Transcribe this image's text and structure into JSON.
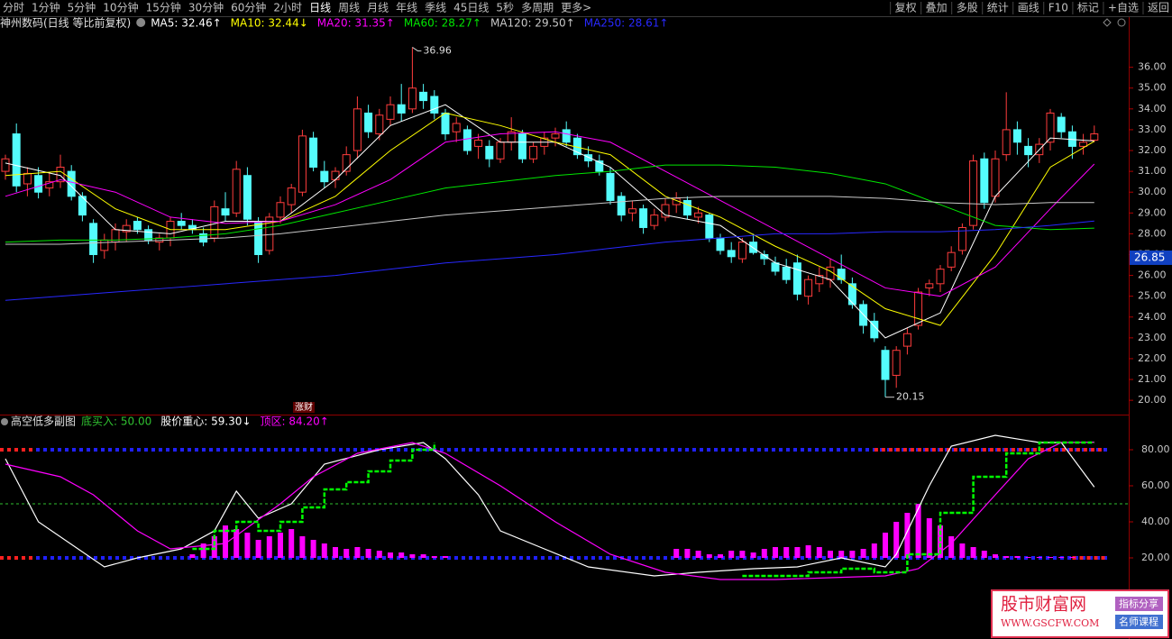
{
  "toolbar": {
    "left": [
      "分时",
      "1分钟",
      "5分钟",
      "10分钟",
      "15分钟",
      "30分钟",
      "60分钟",
      "2小时",
      "日线",
      "周线",
      "月线",
      "年线",
      "季线",
      "45日线",
      "5秒",
      "多周期",
      "更多>"
    ],
    "active_index": 8,
    "right": [
      "复权",
      "叠加",
      "多股",
      "统计",
      "画线",
      "F10",
      "标记",
      "+自选",
      "返回"
    ]
  },
  "chart_data": [
    {
      "type": "candlestick",
      "title": "神州数码(日线 等比前复权)",
      "up_color": "#ff3c3c",
      "down_color": "#54fcfc",
      "open": [
        31.0,
        32.8,
        30.4,
        30.8,
        30.2,
        30.5,
        31.0,
        29.8,
        28.5,
        27.2,
        27.6,
        28.1,
        28.6,
        28.2,
        27.6,
        27.8,
        28.6,
        28.4,
        28.0,
        27.8,
        29.2,
        29.0,
        30.8,
        28.6,
        27.2,
        28.8,
        29.4,
        30.0,
        32.6,
        31.0,
        30.6,
        31.0,
        32.0,
        33.8,
        32.8,
        33.5,
        34.2,
        34.0,
        34.8,
        34.6,
        33.8,
        32.9,
        33.0,
        32.2,
        32.2,
        31.6,
        32.4,
        32.8,
        31.6,
        32.2,
        32.6,
        33.0,
        32.6,
        31.8,
        31.5,
        30.9,
        29.8,
        29.0,
        29.2,
        28.4,
        28.8,
        29.4,
        29.6,
        28.8,
        28.9,
        27.8,
        27.2,
        26.8,
        27.6,
        27.0,
        26.6,
        26.4,
        26.6,
        25.0,
        25.6,
        25.8,
        26.3,
        25.6,
        24.6,
        23.8,
        22.4,
        21.2,
        22.6,
        23.6,
        25.4,
        25.6,
        26.4,
        27.2,
        28.4,
        31.6,
        29.8,
        31.8,
        33.0,
        32.2,
        31.8,
        32.4,
        33.6,
        32.9,
        32.2,
        32.5
      ],
      "high": [
        31.8,
        33.3,
        31.2,
        31.2,
        30.9,
        31.8,
        31.3,
        30.0,
        28.7,
        28.0,
        28.5,
        28.7,
        28.8,
        28.4,
        28.0,
        28.8,
        29.0,
        28.7,
        28.3,
        29.6,
        30.0,
        31.5,
        31.2,
        28.8,
        29.0,
        29.8,
        30.4,
        33.0,
        32.9,
        31.5,
        31.2,
        32.2,
        34.6,
        34.2,
        34.0,
        34.6,
        35.2,
        36.96,
        35.2,
        34.9,
        34.0,
        33.6,
        33.2,
        32.8,
        32.5,
        32.6,
        33.6,
        33.0,
        32.4,
        32.9,
        33.1,
        33.4,
        32.8,
        32.2,
        31.8,
        31.2,
        30.0,
        29.6,
        29.4,
        29.2,
        29.7,
        30.0,
        29.8,
        29.3,
        29.0,
        28.0,
        27.6,
        27.8,
        28.0,
        27.2,
        26.9,
        26.8,
        27.0,
        26.0,
        26.4,
        26.8,
        27.0,
        25.9,
        24.8,
        24.2,
        22.6,
        22.6,
        23.5,
        25.4,
        25.8,
        26.5,
        27.4,
        28.5,
        31.8,
        31.9,
        32.0,
        34.8,
        33.4,
        32.6,
        32.6,
        34.0,
        33.8,
        33.2,
        32.8,
        33.2
      ],
      "low": [
        30.6,
        30.0,
        29.8,
        29.7,
        29.8,
        30.2,
        29.6,
        28.6,
        26.6,
        26.8,
        27.2,
        27.6,
        28.0,
        27.5,
        27.2,
        27.4,
        28.2,
        28.0,
        27.4,
        27.6,
        28.6,
        28.8,
        28.4,
        26.6,
        27.0,
        28.5,
        29.0,
        29.8,
        31.0,
        30.2,
        30.2,
        30.8,
        31.6,
        32.6,
        32.5,
        33.2,
        33.4,
        33.8,
        34.0,
        33.5,
        32.5,
        32.4,
        31.8,
        31.6,
        31.2,
        31.4,
        32.0,
        31.4,
        31.4,
        31.8,
        32.2,
        32.2,
        31.6,
        31.2,
        30.8,
        29.4,
        28.6,
        28.6,
        28.0,
        28.2,
        28.6,
        29.0,
        28.7,
        28.5,
        27.6,
        27.0,
        26.6,
        26.6,
        27.0,
        26.5,
        26.0,
        25.6,
        24.8,
        24.6,
        25.2,
        25.4,
        25.6,
        24.4,
        23.2,
        22.8,
        20.15,
        20.6,
        22.2,
        23.4,
        25.0,
        25.2,
        26.2,
        27.0,
        28.2,
        29.2,
        29.5,
        31.5,
        31.8,
        31.2,
        31.4,
        32.0,
        32.6,
        31.6,
        31.8,
        32.4
      ],
      "close": [
        31.6,
        30.3,
        30.9,
        30.0,
        30.5,
        31.2,
        29.8,
        28.9,
        27.0,
        27.7,
        28.2,
        28.4,
        28.2,
        27.7,
        27.8,
        28.6,
        28.4,
        28.2,
        27.6,
        29.3,
        28.9,
        31.1,
        28.7,
        27.0,
        28.8,
        29.5,
        30.2,
        32.7,
        31.2,
        30.5,
        31.0,
        31.8,
        34.0,
        32.9,
        33.7,
        34.2,
        33.8,
        35.0,
        34.4,
        33.8,
        32.8,
        33.3,
        32.0,
        32.5,
        31.6,
        32.4,
        32.9,
        31.6,
        32.2,
        32.6,
        32.8,
        32.4,
        31.8,
        31.5,
        31.0,
        29.6,
        28.9,
        29.2,
        28.3,
        28.9,
        29.4,
        29.7,
        28.9,
        29.0,
        27.8,
        27.2,
        26.9,
        27.6,
        27.1,
        26.8,
        26.2,
        25.8,
        25.1,
        25.8,
        26.0,
        26.4,
        25.8,
        24.6,
        23.6,
        23.0,
        21.0,
        22.4,
        23.2,
        25.2,
        25.6,
        26.3,
        27.1,
        28.3,
        31.5,
        29.5,
        31.6,
        33.0,
        32.4,
        31.8,
        32.3,
        33.8,
        32.9,
        32.2,
        32.4,
        32.8
      ],
      "ma_x": [
        0,
        5,
        10,
        15,
        20,
        25,
        30,
        35,
        40,
        45,
        50,
        55,
        60,
        65,
        70,
        75,
        80,
        85,
        90,
        95,
        99
      ],
      "ma": [
        {
          "legend": "MA5: 32.46↑",
          "color": "#ffffff",
          "values": [
            31.4,
            30.8,
            28.2,
            28.0,
            28.6,
            28.6,
            30.6,
            33.2,
            34.2,
            32.4,
            32.4,
            31.2,
            28.9,
            28.4,
            26.6,
            25.8,
            23.0,
            24.2,
            29.8,
            32.6,
            32.46
          ]
        },
        {
          "legend": "MA10: 32.44↓",
          "color": "#ffff00",
          "values": [
            30.8,
            31.0,
            29.2,
            28.2,
            28.2,
            28.6,
            29.8,
            32.0,
            33.8,
            33.2,
            32.4,
            31.8,
            29.8,
            28.8,
            27.4,
            26.2,
            24.4,
            23.6,
            27.0,
            31.2,
            32.44
          ]
        },
        {
          "legend": "MA20: 31.35↑",
          "color": "#ff00ff",
          "values": [
            29.8,
            30.6,
            30.0,
            28.8,
            28.5,
            28.6,
            29.4,
            30.6,
            32.4,
            32.8,
            32.9,
            32.4,
            31.0,
            29.6,
            28.2,
            26.8,
            25.4,
            25.0,
            26.4,
            29.2,
            31.35
          ]
        },
        {
          "legend": "MA60: 28.27↑",
          "color": "#00e600",
          "values": [
            27.6,
            27.7,
            27.7,
            27.8,
            28.0,
            28.4,
            29.0,
            29.6,
            30.2,
            30.5,
            30.8,
            31.0,
            31.3,
            31.3,
            31.2,
            30.9,
            30.4,
            29.4,
            28.4,
            28.2,
            28.27
          ]
        },
        {
          "legend": "MA120: 29.50↑",
          "color": "#c8c8c8",
          "values": [
            27.5,
            27.5,
            27.6,
            27.7,
            27.8,
            28.0,
            28.3,
            28.6,
            28.9,
            29.1,
            29.3,
            29.5,
            29.7,
            29.8,
            29.8,
            29.8,
            29.7,
            29.5,
            29.4,
            29.5,
            29.5
          ]
        },
        {
          "legend": "MA250: 28.61↑",
          "color": "#2828ff",
          "values": [
            24.8,
            25.0,
            25.2,
            25.4,
            25.6,
            25.8,
            26.0,
            26.3,
            26.6,
            26.8,
            27.0,
            27.3,
            27.6,
            27.8,
            28.0,
            28.0,
            28.1,
            28.1,
            28.2,
            28.4,
            28.61
          ]
        }
      ],
      "ylim": [
        19.4,
        37.5
      ],
      "yticks": [
        {
          "value": 20,
          "label": "20.00"
        },
        {
          "value": 21,
          "label": "21.00"
        },
        {
          "value": 22,
          "label": "22.00"
        },
        {
          "value": 23,
          "label": "23.00"
        },
        {
          "value": 24,
          "label": "24.00"
        },
        {
          "value": 25,
          "label": "25.00"
        },
        {
          "value": 26,
          "label": "26.00"
        },
        {
          "value": 27,
          "label": "27.00"
        },
        {
          "value": 28,
          "label": "28.00"
        },
        {
          "value": 29,
          "label": "29.00"
        },
        {
          "value": 30,
          "label": "30.00"
        },
        {
          "value": 31,
          "label": "31.00"
        },
        {
          "value": 32,
          "label": "32.00"
        },
        {
          "value": 33,
          "label": "33.00"
        },
        {
          "value": 34,
          "label": "34.00"
        },
        {
          "value": 35,
          "label": "35.00"
        },
        {
          "value": 36,
          "label": "36.00"
        }
      ],
      "cursor_price": 26.85,
      "marker": "涨财"
    },
    {
      "type": "line",
      "title": "高空低多副图",
      "series": [
        {
          "legend": "底买入: 50.00",
          "color": "#30c030",
          "level": 50
        },
        {
          "legend": "股价重心: 59.30↓",
          "color": "#ffffff",
          "x": [
            0,
            3,
            9,
            12,
            16,
            19,
            21,
            23,
            26,
            29,
            34,
            38,
            40,
            43,
            45,
            49,
            53,
            59,
            63,
            68,
            72,
            76,
            80,
            81,
            84,
            86,
            90,
            94,
            96,
            99
          ],
          "values": [
            75,
            40,
            15,
            20,
            25,
            35,
            57,
            42,
            50,
            72,
            80,
            84,
            75,
            55,
            35,
            25,
            15,
            10,
            12,
            14,
            15,
            20,
            15,
            22,
            60,
            82,
            88,
            84,
            84,
            59.3
          ]
        },
        {
          "legend": "顶区: 84.20↑",
          "color": "#ff00ff",
          "x": [
            0,
            5,
            8,
            12,
            15,
            20,
            25,
            28,
            32,
            37,
            40,
            45,
            50,
            55,
            60,
            65,
            70,
            75,
            80,
            83,
            86,
            90,
            93,
            96,
            99
          ],
          "values": [
            72,
            65,
            55,
            35,
            25,
            28,
            50,
            65,
            78,
            84,
            78,
            60,
            40,
            22,
            12,
            8,
            8,
            9,
            10,
            14,
            28,
            55,
            75,
            84,
            84.2
          ]
        }
      ],
      "steps": {
        "color": "#00ff00",
        "x": [
          17,
          19,
          21,
          23,
          25,
          27,
          29,
          31,
          33,
          35,
          37,
          39,
          40,
          67,
          70,
          73,
          76,
          79,
          82,
          85,
          88,
          91,
          94,
          97,
          99
        ],
        "values": [
          25,
          35,
          40,
          35,
          40,
          48,
          58,
          62,
          68,
          74,
          80,
          84,
          null,
          10,
          10,
          12,
          14,
          12,
          22,
          45,
          65,
          78,
          84,
          84,
          84
        ]
      },
      "bars": {
        "color": "#ff00ff",
        "x": [
          17,
          18,
          19,
          20,
          21,
          22,
          23,
          24,
          25,
          26,
          27,
          28,
          29,
          30,
          31,
          32,
          33,
          34,
          35,
          36,
          37,
          38,
          39,
          40,
          61,
          62,
          63,
          64,
          65,
          66,
          67,
          68,
          69,
          70,
          71,
          72,
          73,
          74,
          75,
          76,
          77,
          78,
          79,
          80,
          81,
          82,
          83,
          84,
          85,
          86,
          87,
          88,
          89,
          90,
          91,
          92,
          93,
          94,
          95,
          96,
          97
        ],
        "values": [
          22,
          28,
          32,
          38,
          36,
          34,
          30,
          32,
          34,
          36,
          32,
          30,
          28,
          26,
          25,
          26,
          25,
          24,
          23,
          23,
          22,
          22,
          21,
          21,
          25,
          25,
          24,
          22,
          22,
          24,
          24,
          23,
          25,
          26,
          26,
          26,
          27,
          26,
          24,
          24,
          24,
          25,
          28,
          34,
          40,
          45,
          50,
          42,
          38,
          32,
          28,
          26,
          24,
          22,
          21,
          21,
          20.5,
          20.5,
          20.5,
          20.5,
          20.5
        ]
      },
      "levels": [
        80,
        20
      ],
      "level_color": "#2020ff",
      "ylim": [
        4,
        98.5
      ],
      "yticks": [
        {
          "value": 20,
          "label": "20.00"
        },
        {
          "value": 40,
          "label": "40.00"
        },
        {
          "value": 60,
          "label": "60.00"
        },
        {
          "value": 80,
          "label": "80.00"
        }
      ]
    }
  ],
  "watermark": {
    "name": "股市财富网",
    "url": "WWW.GSCFW.COM",
    "tag1": "指标分享",
    "tag2": "名师课程"
  }
}
